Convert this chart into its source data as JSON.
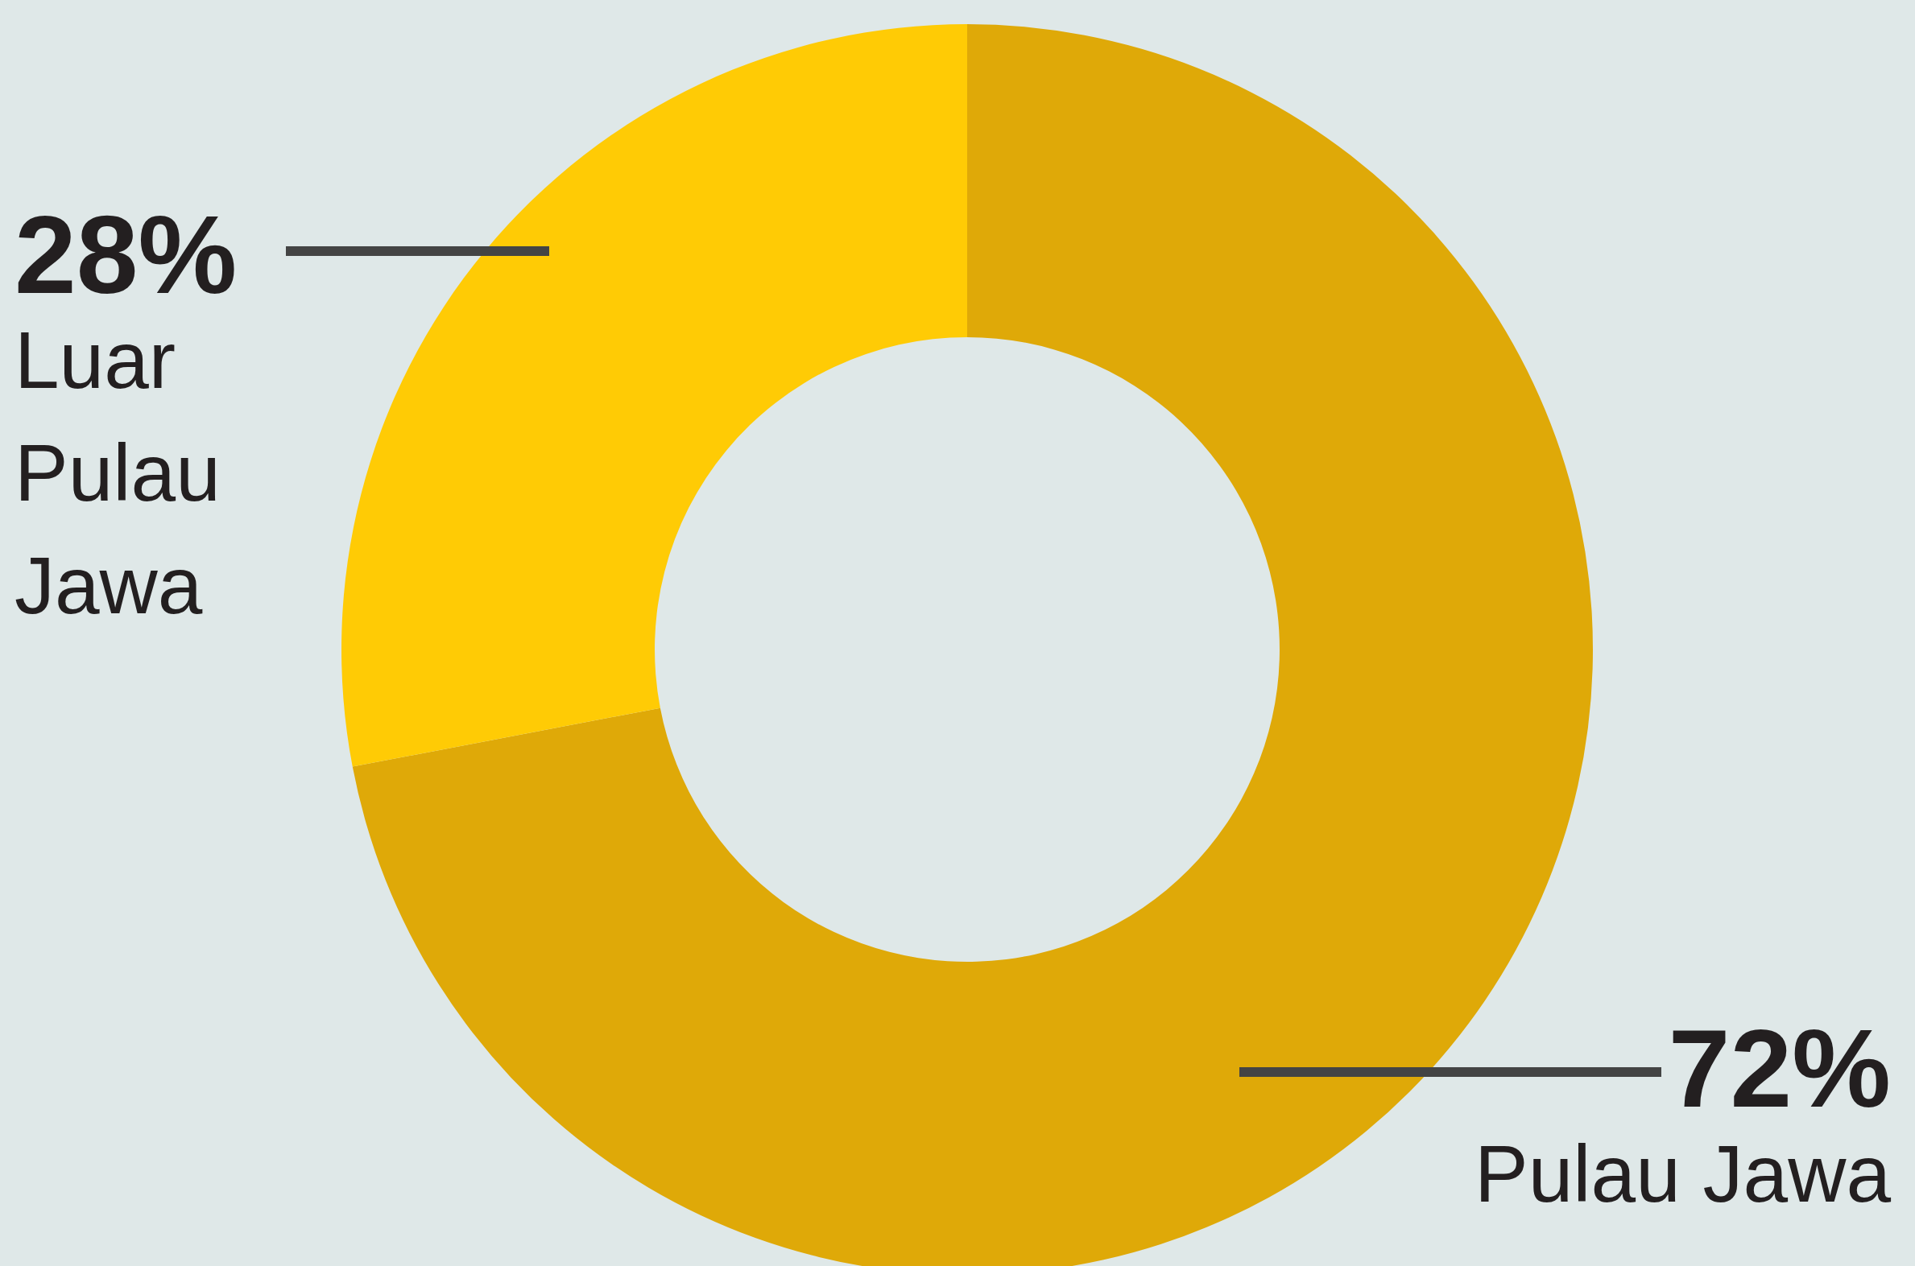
{
  "chart_data": {
    "type": "donut",
    "categories": [
      "Pulau Jawa",
      "Luar Pulau Jawa"
    ],
    "values": [
      72,
      28
    ],
    "colors": [
      "#dfa908",
      "#ffcb05"
    ],
    "value_labels": [
      "72%",
      "28%"
    ]
  }
}
